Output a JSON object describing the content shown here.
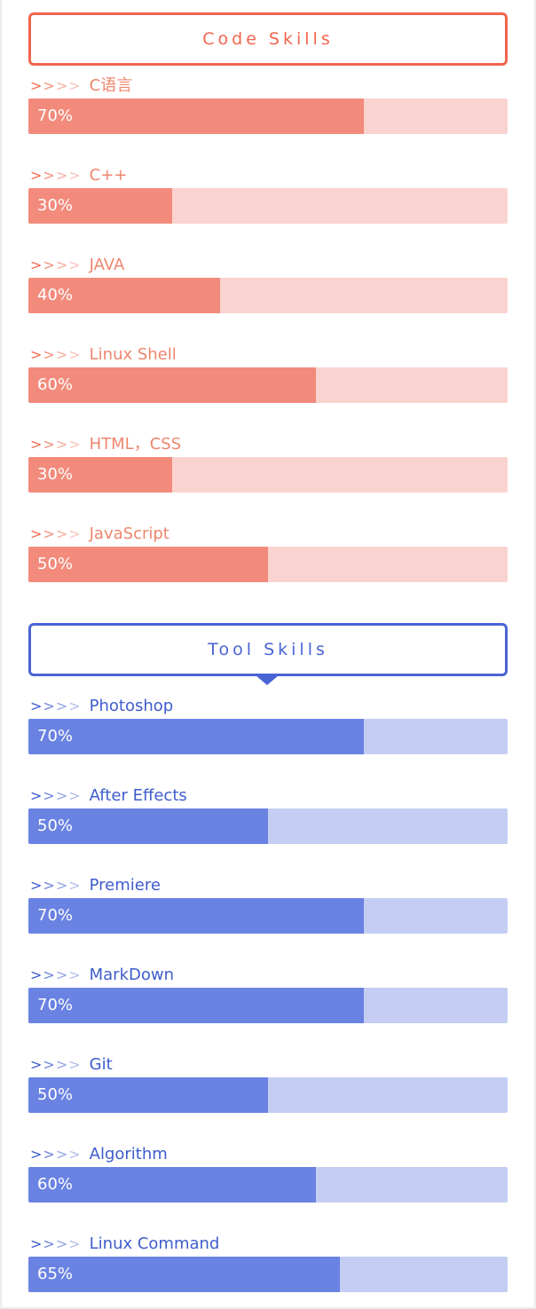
{
  "code_section": {
    "title": "Code Skills",
    "accent_color": "#f1654d",
    "skills": [
      {
        "name": "C语言",
        "percent_label": "70%",
        "level": 0.7
      },
      {
        "name": "C++",
        "percent_label": "30%",
        "level": 0.3
      },
      {
        "name": "JAVA",
        "percent_label": "40%",
        "level": 0.4
      },
      {
        "name": "Linux Shell",
        "percent_label": "60%",
        "level": 0.6
      },
      {
        "name": "HTML，CSS",
        "percent_label": "30%",
        "level": 0.3
      },
      {
        "name": "JavaScript",
        "percent_label": "50%",
        "level": 0.5
      }
    ]
  },
  "tool_section": {
    "title": "Tool Skills",
    "accent_color": "#4a64d6",
    "skills": [
      {
        "name": "Photoshop",
        "percent_label": "70%",
        "level": 0.7
      },
      {
        "name": "After Effects",
        "percent_label": "50%",
        "level": 0.5
      },
      {
        "name": "Premiere",
        "percent_label": "70%",
        "level": 0.7
      },
      {
        "name": "MarkDown",
        "percent_label": "70%",
        "level": 0.7
      },
      {
        "name": "Git",
        "percent_label": "50%",
        "level": 0.5
      },
      {
        "name": "Algorithm",
        "percent_label": "60%",
        "level": 0.6
      },
      {
        "name": "Linux Command",
        "percent_label": "65%",
        "level": 0.65
      }
    ]
  },
  "marker": ">>>>"
}
